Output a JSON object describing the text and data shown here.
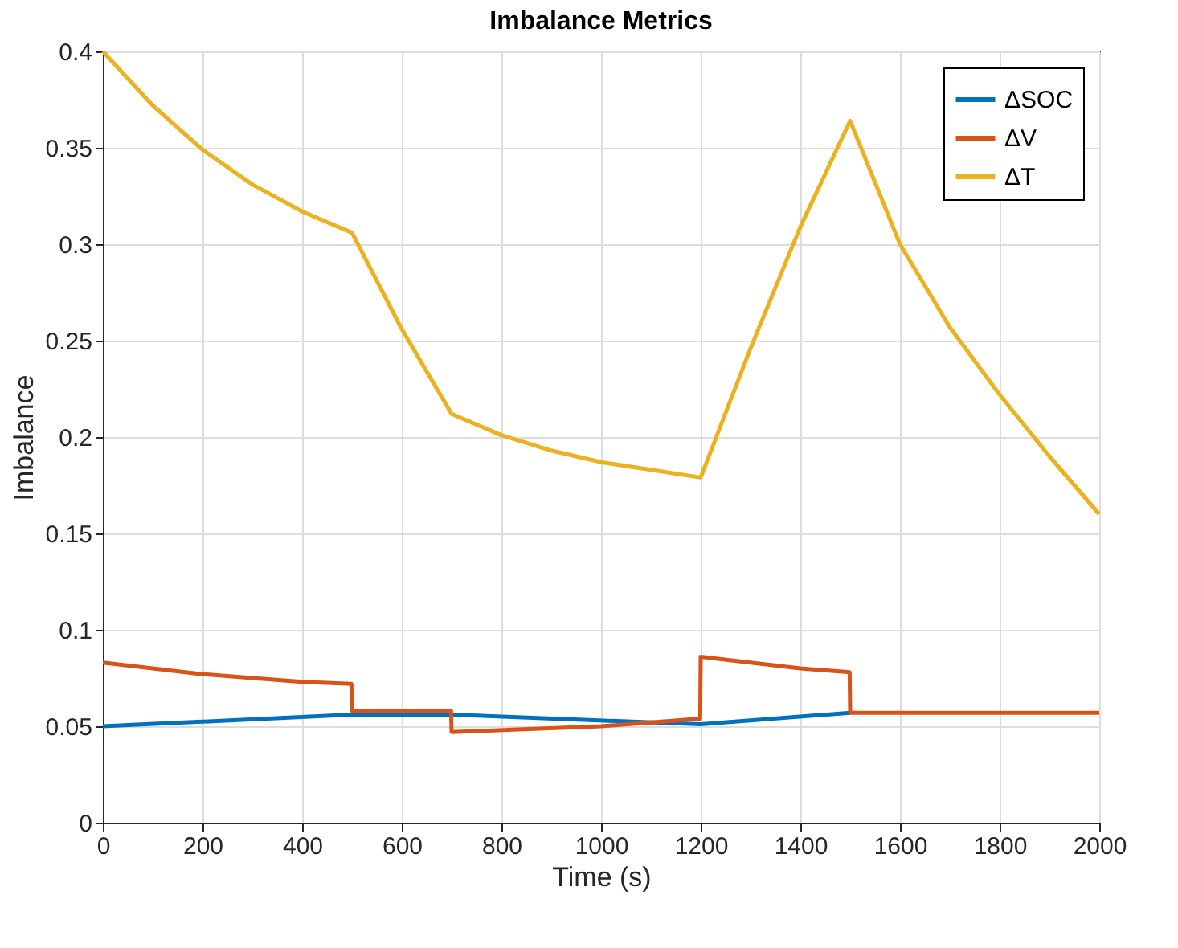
{
  "chart_data": {
    "type": "line",
    "title": "Imbalance Metrics",
    "xlabel": "Time (s)",
    "ylabel": "Imbalance",
    "xlim": [
      0,
      2000
    ],
    "xticks": [
      0,
      200,
      400,
      600,
      800,
      1000,
      1200,
      1400,
      1600,
      1800,
      2000
    ],
    "ylim": [
      0,
      0.4
    ],
    "yticks": [
      0,
      0.05,
      0.1,
      0.15,
      0.2,
      0.25,
      0.3,
      0.35,
      0.4
    ],
    "grid": true,
    "legend": "top right",
    "marker": "none",
    "line_style": "solid",
    "series": [
      {
        "name": "ΔSOC",
        "color": "#0072bd",
        "x": [
          0,
          500,
          700,
          1200,
          1500
        ],
        "values": [
          0.05,
          0.056,
          0.056,
          0.051,
          0.057
        ]
      },
      {
        "name": "ΔV",
        "color": "#d95319",
        "x": [
          0,
          100,
          200,
          300,
          400,
          499,
          500,
          699,
          700,
          1000,
          1199,
          1200,
          1300,
          1400,
          1499,
          1500,
          2000
        ],
        "values": [
          0.083,
          0.08,
          0.077,
          0.075,
          0.073,
          0.072,
          0.058,
          0.058,
          0.047,
          0.05,
          0.054,
          0.086,
          0.083,
          0.08,
          0.078,
          0.057,
          0.057
        ]
      },
      {
        "name": "ΔT",
        "color": "#edb120",
        "x": [
          0,
          100,
          200,
          300,
          400,
          500,
          600,
          700,
          800,
          900,
          1000,
          1100,
          1200,
          1300,
          1400,
          1500,
          1600,
          1700,
          1800,
          1900,
          2000
        ],
        "values": [
          0.4,
          0.372,
          0.349,
          0.331,
          0.317,
          0.306,
          0.256,
          0.212,
          0.201,
          0.193,
          0.187,
          0.183,
          0.179,
          0.246,
          0.309,
          0.364,
          0.3,
          0.257,
          0.222,
          0.19,
          0.16
        ]
      }
    ]
  }
}
